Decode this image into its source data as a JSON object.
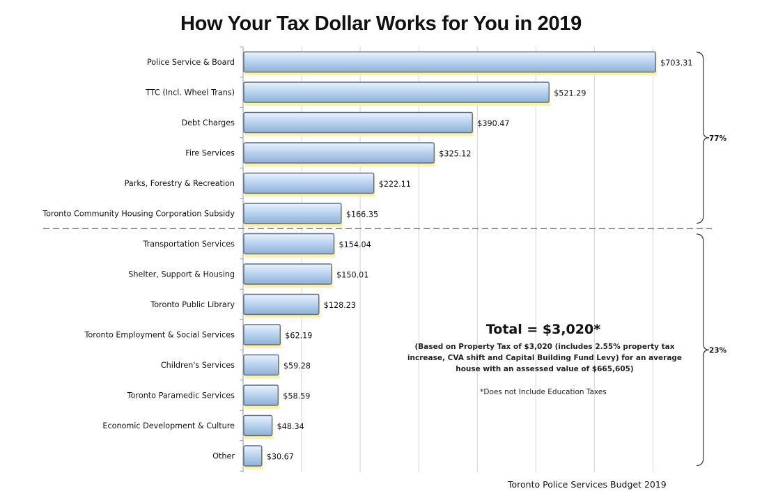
{
  "chart_data": {
    "type": "bar",
    "orientation": "horizontal",
    "title": "How Your Tax Dollar Works for You in 2019",
    "categories": [
      "Police Service & Board",
      "TTC (Incl. Wheel Trans)",
      "Debt Charges",
      "Fire Services",
      "Parks, Forestry & Recreation",
      "Toronto Community Housing Corporation Subsidy",
      "Transportation Services",
      "Shelter, Support & Housing",
      "Toronto Public Library",
      "Toronto Employment & Social Services",
      "Children's Services",
      "Toronto Paramedic Services",
      "Economic Development & Culture",
      "Other"
    ],
    "values": [
      703.31,
      521.29,
      390.47,
      325.12,
      222.11,
      166.35,
      154.04,
      150.01,
      128.23,
      62.19,
      59.28,
      58.59,
      48.34,
      30.67
    ],
    "value_labels": [
      "$703.31",
      "$521.29",
      "$390.47",
      "$325.12",
      "$222.11",
      "$166.35",
      "$154.04",
      "$150.01",
      "$128.23",
      "$62.19",
      "$59.28",
      "$58.59",
      "$48.34",
      "$30.67"
    ],
    "xlim": [
      0,
      740
    ],
    "grid": "vertical",
    "groups": [
      {
        "label": "77%",
        "from": 0,
        "to": 5
      },
      {
        "label": "23%",
        "from": 6,
        "to": 13
      }
    ],
    "colors": {
      "bar": "#b9d3f0",
      "bar_edge": "#5b6f86",
      "shadow": "#fff2a8",
      "grid": "#d4d4d4",
      "divider": "#777777"
    }
  },
  "annotation": {
    "total": "Total = $3,020*",
    "note": "(Based on Property Tax of $3,020 (includes 2.55% property tax increase, CVA shift and Capital Building Fund Levy) for an average house with an assessed value of $665,605)",
    "footnote": "*Does not Include Education Taxes"
  },
  "source": "Toronto Police Services Budget 2019"
}
